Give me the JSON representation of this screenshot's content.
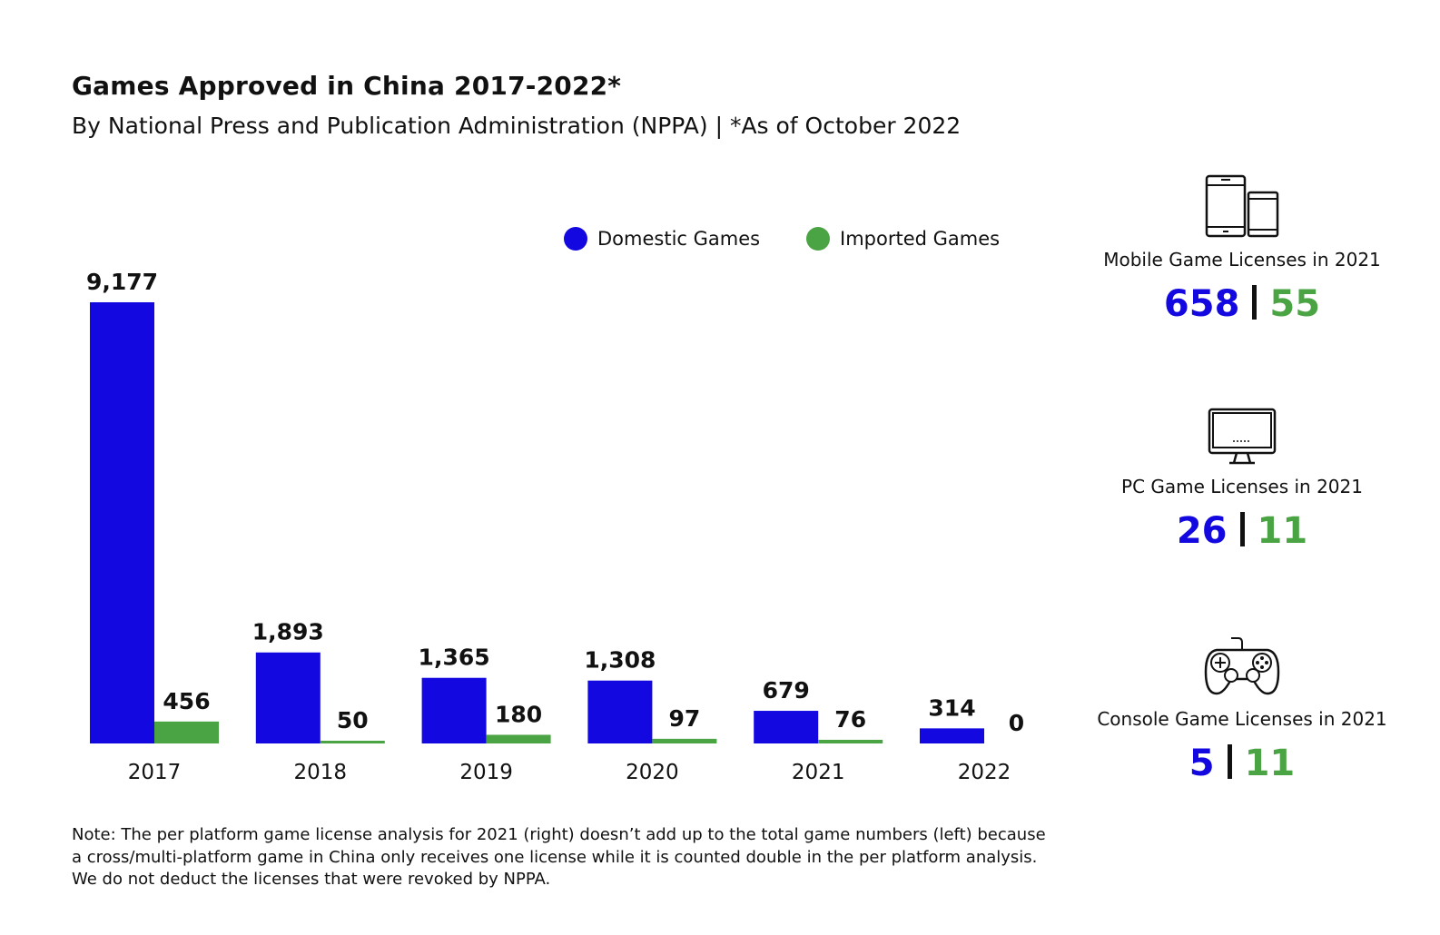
{
  "header": {
    "title": "Games Approved in China 2017-2022*",
    "subtitle": "By National Press and Publication Administration (NPPA) | *As of October 2022"
  },
  "colors": {
    "domestic": "#1309E0",
    "imported": "#4BA444",
    "text": "#111111"
  },
  "chart_data": {
    "type": "bar",
    "categories": [
      "2017",
      "2018",
      "2019",
      "2020",
      "2021",
      "2022"
    ],
    "series": [
      {
        "name": "Domestic Games",
        "values": [
          9177,
          1893,
          1365,
          1308,
          679,
          314
        ],
        "labels": [
          "9,177",
          "1,893",
          "1,365",
          "1,308",
          "679",
          "314"
        ]
      },
      {
        "name": "Imported Games",
        "values": [
          456,
          50,
          180,
          97,
          76,
          0
        ],
        "labels": [
          "456",
          "50",
          "180",
          "97",
          "76",
          "0"
        ]
      }
    ],
    "legend": "top",
    "grid": false,
    "ylim": [
      0,
      9177
    ]
  },
  "panels": [
    {
      "icon": "mobile-devices-icon",
      "label": "Mobile Game Licenses in 2021",
      "domestic": "658",
      "imported": "55"
    },
    {
      "icon": "desktop-monitor-icon",
      "label": "PC Game Licenses in 2021",
      "domestic": "26",
      "imported": "11"
    },
    {
      "icon": "gamepad-icon",
      "label": "Console Game Licenses in 2021",
      "domestic": "5",
      "imported": "11"
    }
  ],
  "note": [
    "Note: The per platform game license analysis for 2021 (right) doesn’t add up to the total game numbers (left) because",
    "a cross/multi-platform game in China only receives one license while it is counted double in the per platform analysis.",
    "We do not deduct the licenses that were revoked by NPPA."
  ]
}
